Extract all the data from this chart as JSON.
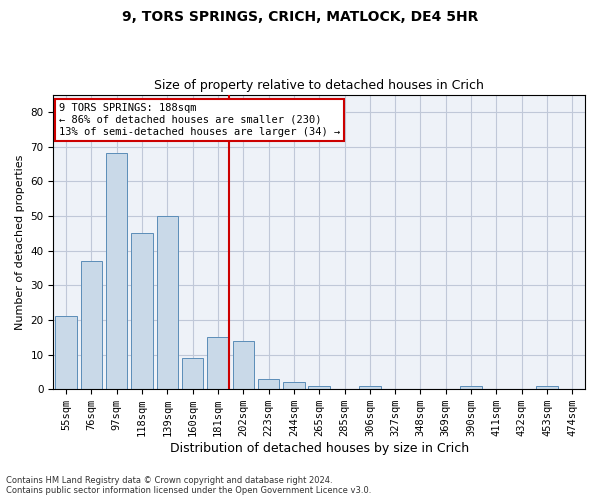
{
  "title": "9, TORS SPRINGS, CRICH, MATLOCK, DE4 5HR",
  "subtitle": "Size of property relative to detached houses in Crich",
  "xlabel": "Distribution of detached houses by size in Crich",
  "ylabel": "Number of detached properties",
  "footer": "Contains HM Land Registry data © Crown copyright and database right 2024.\nContains public sector information licensed under the Open Government Licence v3.0.",
  "categories": [
    "55sqm",
    "76sqm",
    "97sqm",
    "118sqm",
    "139sqm",
    "160sqm",
    "181sqm",
    "202sqm",
    "223sqm",
    "244sqm",
    "265sqm",
    "285sqm",
    "306sqm",
    "327sqm",
    "348sqm",
    "369sqm",
    "390sqm",
    "411sqm",
    "432sqm",
    "453sqm",
    "474sqm"
  ],
  "values": [
    21,
    37,
    68,
    45,
    50,
    9,
    15,
    14,
    3,
    2,
    1,
    0,
    1,
    0,
    0,
    0,
    1,
    0,
    0,
    1,
    0
  ],
  "bar_color": "#c9d9e8",
  "bar_edge_color": "#5b8db8",
  "grid_color": "#c0c8d8",
  "background_color": "#eef2f8",
  "annotation_line1": "9 TORS SPRINGS: 188sqm",
  "annotation_line2": "← 86% of detached houses are smaller (230)",
  "annotation_line3": "13% of semi-detached houses are larger (34) →",
  "annotation_box_color": "#ffffff",
  "annotation_box_edge": "#cc0000",
  "vline_color": "#cc0000",
  "ylim": [
    0,
    85
  ],
  "yticks": [
    0,
    10,
    20,
    30,
    40,
    50,
    60,
    70,
    80
  ],
  "title_fontsize": 10,
  "subtitle_fontsize": 9,
  "ylabel_fontsize": 8,
  "xlabel_fontsize": 9,
  "tick_fontsize": 7.5
}
